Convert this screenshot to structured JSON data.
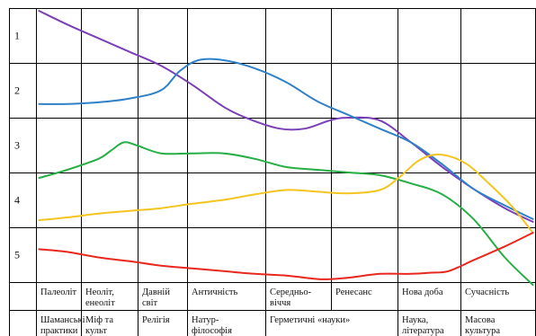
{
  "chart_data": {
    "type": "line",
    "title": "",
    "row_labels": [
      "1",
      "2",
      "3",
      "4",
      "5"
    ],
    "periods": [
      [
        "Палеоліт"
      ],
      [
        "Неоліт,",
        "енеоліт"
      ],
      [
        "Давній",
        "світ"
      ],
      [
        "Античність"
      ],
      [
        "Середньо-",
        "віччя"
      ],
      [
        "Ренесанс"
      ],
      [
        "Нова доба"
      ],
      [
        "Сучасність"
      ]
    ],
    "forms": [
      {
        "lines": [
          "Шаманські",
          "практики"
        ],
        "span": [
          0,
          0
        ]
      },
      {
        "lines": [
          "Міф та",
          "культ"
        ],
        "span": [
          1,
          1
        ]
      },
      {
        "lines": [
          "Релігія"
        ],
        "span": [
          2,
          2
        ]
      },
      {
        "lines": [
          "Натур-",
          "філософія"
        ],
        "span": [
          3,
          3
        ]
      },
      {
        "lines": [
          "Герметичні «науки»"
        ],
        "span": [
          4,
          5
        ]
      },
      {
        "lines": [
          "Наука,",
          "література"
        ],
        "span": [
          6,
          6
        ]
      },
      {
        "lines": [
          "Масова",
          "культура"
        ],
        "span": [
          7,
          7
        ]
      }
    ],
    "x_range": [
      0,
      8
    ],
    "y_range": [
      0.5,
      5.5
    ],
    "series": [
      {
        "color": "#7b3fb8",
        "points": [
          [
            0.05,
            0.55
          ],
          [
            0.5,
            0.8
          ],
          [
            1.0,
            1.05
          ],
          [
            1.5,
            1.3
          ],
          [
            2.0,
            1.55
          ],
          [
            2.5,
            1.9
          ],
          [
            3.0,
            2.3
          ],
          [
            3.4,
            2.52
          ],
          [
            3.9,
            2.7
          ],
          [
            4.3,
            2.7
          ],
          [
            4.7,
            2.55
          ],
          [
            5.0,
            2.5
          ],
          [
            5.5,
            2.55
          ],
          [
            6.0,
            2.95
          ],
          [
            6.5,
            3.4
          ],
          [
            7.0,
            3.8
          ],
          [
            7.5,
            4.15
          ],
          [
            7.95,
            4.4
          ]
        ]
      },
      {
        "color": "#2f80c8",
        "points": [
          [
            0.05,
            2.25
          ],
          [
            0.5,
            2.25
          ],
          [
            1.0,
            2.22
          ],
          [
            1.5,
            2.15
          ],
          [
            2.0,
            2.0
          ],
          [
            2.3,
            1.65
          ],
          [
            2.6,
            1.45
          ],
          [
            3.0,
            1.45
          ],
          [
            3.5,
            1.6
          ],
          [
            4.0,
            1.85
          ],
          [
            4.5,
            2.2
          ],
          [
            5.0,
            2.45
          ],
          [
            5.5,
            2.7
          ],
          [
            6.0,
            2.95
          ],
          [
            6.5,
            3.35
          ],
          [
            7.0,
            3.8
          ],
          [
            7.5,
            4.1
          ],
          [
            7.95,
            4.35
          ]
        ]
      },
      {
        "color": "#27ae45",
        "points": [
          [
            0.05,
            3.6
          ],
          [
            0.5,
            3.45
          ],
          [
            1.0,
            3.25
          ],
          [
            1.2,
            3.1
          ],
          [
            1.4,
            2.95
          ],
          [
            1.6,
            3.0
          ],
          [
            2.0,
            3.15
          ],
          [
            2.5,
            3.15
          ],
          [
            3.0,
            3.15
          ],
          [
            3.5,
            3.25
          ],
          [
            4.0,
            3.4
          ],
          [
            4.5,
            3.45
          ],
          [
            5.0,
            3.5
          ],
          [
            5.5,
            3.55
          ],
          [
            6.0,
            3.7
          ],
          [
            6.5,
            3.9
          ],
          [
            7.0,
            4.35
          ],
          [
            7.5,
            5.05
          ],
          [
            7.95,
            5.55
          ]
        ]
      },
      {
        "color": "#f4c41f",
        "points": [
          [
            0.05,
            4.37
          ],
          [
            0.5,
            4.32
          ],
          [
            1.0,
            4.25
          ],
          [
            1.5,
            4.2
          ],
          [
            2.0,
            4.15
          ],
          [
            2.5,
            4.07
          ],
          [
            3.0,
            4.0
          ],
          [
            3.5,
            3.9
          ],
          [
            4.0,
            3.82
          ],
          [
            4.5,
            3.85
          ],
          [
            5.0,
            3.88
          ],
          [
            5.5,
            3.82
          ],
          [
            5.8,
            3.6
          ],
          [
            6.1,
            3.3
          ],
          [
            6.35,
            3.18
          ],
          [
            6.6,
            3.2
          ],
          [
            6.9,
            3.35
          ],
          [
            7.2,
            3.65
          ],
          [
            7.6,
            4.1
          ],
          [
            7.95,
            4.6
          ]
        ]
      },
      {
        "color": "#e8281e",
        "points": [
          [
            0.05,
            4.9
          ],
          [
            0.5,
            4.95
          ],
          [
            1.0,
            5.05
          ],
          [
            1.5,
            5.12
          ],
          [
            2.0,
            5.2
          ],
          [
            2.5,
            5.25
          ],
          [
            3.0,
            5.3
          ],
          [
            3.5,
            5.35
          ],
          [
            4.0,
            5.38
          ],
          [
            4.3,
            5.42
          ],
          [
            4.6,
            5.45
          ],
          [
            5.0,
            5.42
          ],
          [
            5.5,
            5.35
          ],
          [
            6.0,
            5.35
          ],
          [
            6.3,
            5.33
          ],
          [
            6.6,
            5.3
          ],
          [
            7.0,
            5.1
          ],
          [
            7.5,
            4.85
          ],
          [
            7.95,
            4.6
          ]
        ]
      }
    ]
  }
}
